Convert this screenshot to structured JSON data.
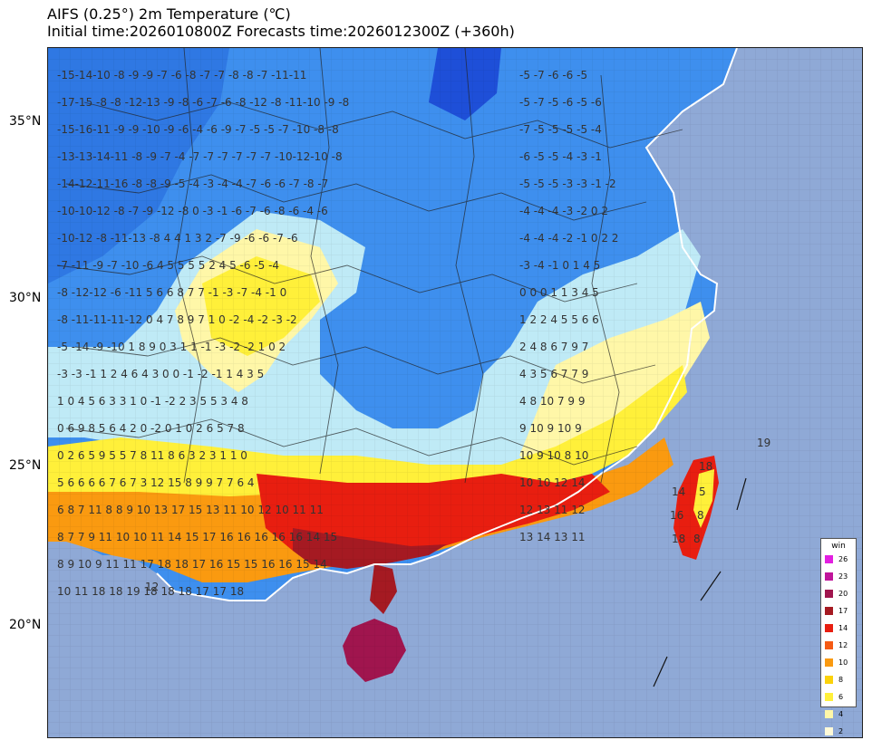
{
  "header": {
    "title": "AIFS (0.25°) 2m Temperature (℃)",
    "subtitle": "Initial time:2026010800Z  Forecasts time:2026012300Z (+360h)"
  },
  "lat_labels": [
    "35°N",
    "30°N",
    "25°N",
    "20°N"
  ],
  "legend": {
    "title": "win",
    "levels": [
      {
        "label": "26",
        "color": "#e21fe0"
      },
      {
        "label": "23",
        "color": "#c0159a"
      },
      {
        "label": "20",
        "color": "#a0154e"
      },
      {
        "label": "17",
        "color": "#a51a22"
      },
      {
        "label": "14",
        "color": "#e81e10"
      },
      {
        "label": "12",
        "color": "#f55a14"
      },
      {
        "label": "10",
        "color": "#fa9a10"
      },
      {
        "label": "8",
        "color": "#fbd20a"
      },
      {
        "label": "6",
        "color": "#fff03a"
      },
      {
        "label": "4",
        "color": "#fff7a8"
      },
      {
        "label": "2",
        "color": "#fffad8"
      }
    ]
  },
  "colors": {
    "sea": "#8fa9d6",
    "cold_deep": "#1e4fd8",
    "cold": "#2f78e3",
    "cool": "#3e8fee",
    "near_zero": "#bfeaf6",
    "border": "#222222"
  },
  "map_values": [
    {
      "text": "-15-14-10 -8  -9  -9  -7  -6  -8  -7  -7   -8  -8  -7  -11-11",
      "row": 0
    },
    {
      "text": "-17-15 -8  -8 -12-13 -9  -8  -6   -7  -6  -8  -12 -8  -11-10 -9  -8",
      "row": 1
    },
    {
      "text": "-15-16-11 -9  -9  -10 -9  -6  -4  -6  -9  -7  -5  -5  -7  -10 -8  -8",
      "row": 2
    },
    {
      "text": "-13-13-14-11 -8  -9  -7  -4  -7  -7  -7  -7  -7  -7  -10-12-10 -8",
      "row": 3
    },
    {
      "text": "-14-12-11-16 -8  -8  -9  -5  -4  -3  -4  -4  -7  -6  -6  -7  -8  -7",
      "row": 4
    },
    {
      "text": "-10-10-12 -8  -7  -9 -12  -8   0  -3  -1  -6  -7  -6  -8  -6  -4  -6",
      "row": 5
    },
    {
      "text": "-10-12 -8 -11-13 -8   4   4   1   3   2  -7  -9  -6  -6  -7  -6",
      "row": 6
    },
    {
      "text": "-7 -11 -9  -7 -10  -6   4   5   5   5   5   2   4   5  -6  -5  -4",
      "row": 7
    },
    {
      "text": "-8 -12-12 -6 -11   5   6   6   8   7   7  -1  -3  -7  -4  -1   0",
      "row": 8
    },
    {
      "text": "-8 -11-11-11-12  0   4   7   8   9   7   1   0  -2  -4  -2  -3  -2",
      "row": 9
    },
    {
      "text": "-5 -14 -9 -10  1   8   9   0   3   1   1  -1  -3  -2  -2   1   0   2",
      "row": 10
    },
    {
      "text": "-3  -3  -1   1   2   4   6   4   3   0   0  -1  -2  -1   1   4   3   5",
      "row": 11
    },
    {
      "text": "1   0   4   5   6   3   3   1   0  -1  -2   2   3   5   5   3   4   8",
      "row": 12
    },
    {
      "text": "0   6   9   8   5   6   4   2   0  -2   0   1   0   2   6   5   7   8",
      "row": 13
    },
    {
      "text": "0   2   6   5   9   5   5   7   8  11   8   6   3   2   3   1   1   0",
      "row": 14
    },
    {
      "text": "5   6   6   6   6   7   6   7   3  12  15   8   9   9   7   7   6   4",
      "row": 15
    },
    {
      "text": "6   8   7  11   8   8   9  10  13  17  15  13  11  10  12  10  11  11",
      "row": 16
    },
    {
      "text": "8   7   7   9  11  10  10  11  14  15  17  16  16  16  16  16  14  15",
      "row": 17
    },
    {
      "text": "8   9  10   9  11  11  17  18  18  17  16  15  15  16  16  15  14",
      "row": 18
    },
    {
      "text": "10  11  18  18  19  18  18  18  17  17  18",
      "row": 19
    }
  ],
  "east_values": [
    {
      "text": "-5  -7  -6  -6  -5",
      "row": 0
    },
    {
      "text": "-5  -7  -5  -6  -5  -6",
      "row": 1
    },
    {
      "text": "-7  -5  -5  -5  -5  -4",
      "row": 2
    },
    {
      "text": "-6  -5  -5  -4  -3  -1",
      "row": 3
    },
    {
      "text": "-5  -5  -5  -3  -3  -1  -2",
      "row": 4
    },
    {
      "text": "-4  -4  -4  -3  -2   0   2",
      "row": 5
    },
    {
      "text": "-4  -4  -4  -2  -1   0   2   2",
      "row": 6
    },
    {
      "text": "-3  -4  -1   0   1   4   5",
      "row": 7
    },
    {
      "text": "0   0   0   1   1   3   4   5",
      "row": 8
    },
    {
      "text": "1   2   2   4   5   5   6   6",
      "row": 9
    },
    {
      "text": "2   4   8   6   7   9   7",
      "row": 10
    },
    {
      "text": "4   3   5   6   7   7   9",
      "row": 11
    },
    {
      "text": "4   8  10   7   9   9",
      "row": 12
    },
    {
      "text": "9  10   9  10   9",
      "row": 13
    },
    {
      "text": "10   9  10   8  10",
      "row": 14
    },
    {
      "text": "10  10  12  14",
      "row": 15
    },
    {
      "text": "12  13  11  12",
      "row": 16
    },
    {
      "text": "13  14  13  11",
      "row": 17
    }
  ],
  "taiwan_values": [
    "18",
    "5",
    "14",
    "16",
    "8",
    "18",
    "8"
  ],
  "island_value": "19",
  "south_value": "12"
}
